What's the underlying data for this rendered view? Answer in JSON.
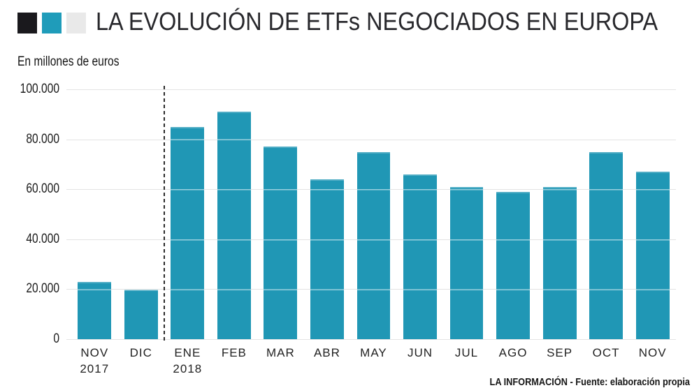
{
  "header": {
    "brand_colors": [
      "#1a191d",
      "#1f9cba",
      "#e9e9e9"
    ]
  },
  "chart_data": {
    "type": "bar",
    "title": "LA EVOLUCIÓN DE ETFs NEGOCIADOS EN EUROPA",
    "subtitle": "En millones de euros",
    "categories": [
      "NOV",
      "DIC",
      "ENE",
      "FEB",
      "MAR",
      "ABR",
      "MAY",
      "JUN",
      "JUL",
      "AGO",
      "SEP",
      "OCT",
      "NOV"
    ],
    "category_years": {
      "0": "2017",
      "2": "2018"
    },
    "values": [
      23000,
      19800,
      85000,
      91000,
      77000,
      64000,
      75000,
      66000,
      61000,
      59000,
      61000,
      75000,
      67000
    ],
    "ylim": [
      0,
      100000
    ],
    "y_ticks": [
      {
        "value": 100000,
        "label": "100.000"
      },
      {
        "value": 80000,
        "label": "80.000"
      },
      {
        "value": 60000,
        "label": "60.000"
      },
      {
        "value": 40000,
        "label": "40.000"
      },
      {
        "value": 20000,
        "label": "20.000"
      },
      {
        "value": 0,
        "label": "0"
      }
    ],
    "grid": true,
    "legend_position": "none",
    "bar_color": "#2097b5",
    "gridline_color": "#e3e3e3",
    "separator": {
      "between_categories": [
        "DIC",
        "ENE"
      ],
      "style": "dashed",
      "color": "#2b2b2b"
    }
  },
  "footer": {
    "credit": "LA INFORMACIÓN - Fuente: elaboración propia"
  }
}
